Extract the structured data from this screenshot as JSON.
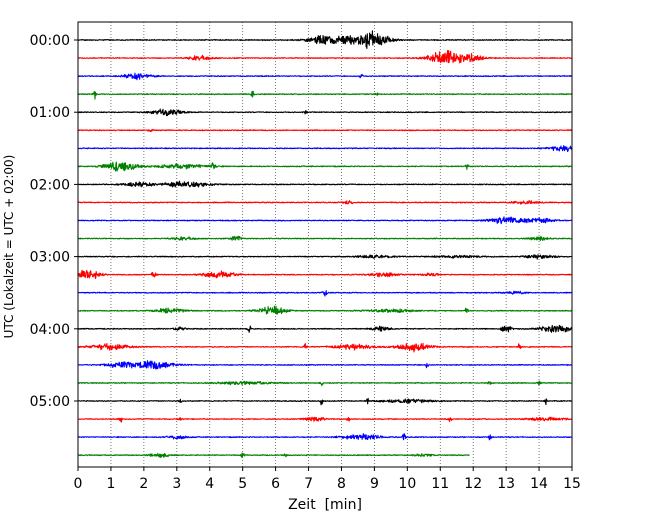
{
  "chart_data": {
    "type": "line",
    "title": "",
    "xlabel": "Zeit  [min]",
    "ylabel": "UTC (Lokalzeit = UTC + 02:00)",
    "xlim": [
      0,
      15
    ],
    "x_ticks": [
      "0",
      "1",
      "2",
      "3",
      "4",
      "5",
      "6",
      "7",
      "8",
      "9",
      "10",
      "11",
      "12",
      "13",
      "14",
      "15"
    ],
    "y_tick_labels": [
      "00:00",
      "01:00",
      "02:00",
      "03:00",
      "04:00",
      "05:00"
    ],
    "trace_interval_min": 15,
    "grid": "vertical dotted at each minute",
    "colors": [
      "#000000",
      "#ff0000",
      "#0000ff",
      "#008000"
    ],
    "traces": [
      {
        "start": "00:00",
        "color": "#000000",
        "bursts": [
          [
            7.5,
            0.35,
            0.55
          ],
          [
            9.0,
            0.3,
            0.8
          ],
          [
            8.5,
            0.5,
            0.5
          ]
        ]
      },
      {
        "start": "00:15",
        "color": "#ff0000",
        "bursts": [
          [
            3.7,
            0.25,
            0.3
          ],
          [
            11.2,
            0.4,
            0.8
          ],
          [
            11.9,
            0.3,
            0.4
          ]
        ]
      },
      {
        "start": "00:30",
        "color": "#0000ff",
        "bursts": [
          [
            1.8,
            0.3,
            0.35
          ],
          [
            8.6,
            0.03,
            0.45
          ]
        ]
      },
      {
        "start": "00:45",
        "color": "#008000",
        "bursts": [
          [
            0.5,
            0.03,
            0.7
          ],
          [
            5.3,
            0.03,
            0.5
          ],
          [
            9.1,
            0.05,
            0.2
          ]
        ]
      },
      {
        "start": "01:00",
        "color": "#000000",
        "bursts": [
          [
            2.7,
            0.3,
            0.45
          ],
          [
            6.9,
            0.03,
            0.3
          ]
        ]
      },
      {
        "start": "01:15",
        "color": "#ff0000",
        "bursts": [
          [
            2.2,
            0.05,
            0.2
          ]
        ]
      },
      {
        "start": "01:30",
        "color": "#0000ff",
        "bursts": [
          [
            14.8,
            0.3,
            0.4
          ]
        ]
      },
      {
        "start": "01:45",
        "color": "#008000",
        "bursts": [
          [
            1.3,
            0.35,
            0.65
          ],
          [
            3.2,
            0.5,
            0.3
          ],
          [
            4.1,
            0.05,
            0.4
          ],
          [
            11.8,
            0.03,
            0.4
          ]
        ]
      },
      {
        "start": "02:00",
        "color": "#000000",
        "bursts": [
          [
            1.8,
            0.3,
            0.3
          ],
          [
            3.3,
            0.45,
            0.4
          ]
        ]
      },
      {
        "start": "02:15",
        "color": "#ff0000",
        "bursts": [
          [
            8.2,
            0.1,
            0.3
          ],
          [
            13.6,
            0.3,
            0.2
          ]
        ]
      },
      {
        "start": "02:30",
        "color": "#0000ff",
        "bursts": [
          [
            13.0,
            0.35,
            0.45
          ],
          [
            14.0,
            0.3,
            0.3
          ]
        ]
      },
      {
        "start": "02:45",
        "color": "#008000",
        "bursts": [
          [
            3.2,
            0.25,
            0.2
          ],
          [
            4.8,
            0.1,
            0.45
          ],
          [
            14.0,
            0.2,
            0.25
          ]
        ]
      },
      {
        "start": "03:00",
        "color": "#000000",
        "bursts": [
          [
            9.0,
            0.4,
            0.2
          ],
          [
            14.0,
            0.3,
            0.25
          ],
          [
            11.5,
            0.5,
            0.15
          ]
        ]
      },
      {
        "start": "03:15",
        "color": "#ff0000",
        "bursts": [
          [
            0.3,
            0.25,
            0.6
          ],
          [
            2.3,
            0.05,
            0.4
          ],
          [
            4.3,
            0.35,
            0.4
          ],
          [
            9.3,
            0.3,
            0.25
          ],
          [
            10.7,
            0.2,
            0.2
          ]
        ]
      },
      {
        "start": "03:30",
        "color": "#0000ff",
        "bursts": [
          [
            7.5,
            0.05,
            0.4
          ],
          [
            13.3,
            0.2,
            0.2
          ]
        ]
      },
      {
        "start": "03:45",
        "color": "#008000",
        "bursts": [
          [
            2.8,
            0.3,
            0.3
          ],
          [
            5.9,
            0.3,
            0.55
          ],
          [
            11.8,
            0.03,
            0.5
          ],
          [
            9.5,
            0.5,
            0.2
          ]
        ]
      },
      {
        "start": "04:00",
        "color": "#000000",
        "bursts": [
          [
            5.2,
            0.03,
            0.6
          ],
          [
            13.0,
            0.1,
            0.5
          ],
          [
            14.5,
            0.3,
            0.6
          ],
          [
            9.2,
            0.2,
            0.3
          ],
          [
            3.1,
            0.1,
            0.3
          ]
        ]
      },
      {
        "start": "04:15",
        "color": "#ff0000",
        "bursts": [
          [
            1.0,
            0.4,
            0.4
          ],
          [
            6.9,
            0.03,
            0.6
          ],
          [
            10.2,
            0.35,
            0.55
          ],
          [
            8.3,
            0.4,
            0.35
          ],
          [
            13.4,
            0.03,
            0.4
          ]
        ]
      },
      {
        "start": "04:30",
        "color": "#0000ff",
        "bursts": [
          [
            1.3,
            0.3,
            0.4
          ],
          [
            2.3,
            0.4,
            0.55
          ],
          [
            10.6,
            0.03,
            0.4
          ]
        ]
      },
      {
        "start": "04:45",
        "color": "#008000",
        "bursts": [
          [
            7.4,
            0.03,
            0.35
          ],
          [
            12.5,
            0.03,
            0.4
          ],
          [
            14.0,
            0.03,
            0.35
          ],
          [
            5.0,
            0.6,
            0.2
          ]
        ]
      },
      {
        "start": "05:00",
        "color": "#000000",
        "bursts": [
          [
            3.1,
            0.03,
            0.4
          ],
          [
            7.4,
            0.03,
            0.55
          ],
          [
            8.8,
            0.03,
            0.55
          ],
          [
            14.2,
            0.03,
            0.4
          ],
          [
            10.0,
            0.5,
            0.25
          ]
        ]
      },
      {
        "start": "05:15",
        "color": "#ff0000",
        "bursts": [
          [
            1.3,
            0.03,
            0.45
          ],
          [
            3.1,
            0.03,
            0.4
          ],
          [
            8.2,
            0.03,
            0.45
          ],
          [
            11.3,
            0.03,
            0.4
          ],
          [
            7.2,
            0.2,
            0.25
          ],
          [
            14.2,
            0.4,
            0.2
          ]
        ]
      },
      {
        "start": "05:30",
        "color": "#0000ff",
        "bursts": [
          [
            9.9,
            0.03,
            0.65
          ],
          [
            12.5,
            0.03,
            0.5
          ],
          [
            8.6,
            0.4,
            0.35
          ],
          [
            3.0,
            0.2,
            0.25
          ]
        ]
      },
      {
        "start": "05:45",
        "color": "#008000",
        "end_min": 11.9,
        "bursts": [
          [
            5.0,
            0.03,
            0.4
          ],
          [
            2.5,
            0.2,
            0.3
          ],
          [
            6.3,
            0.03,
            0.3
          ],
          [
            10.5,
            0.2,
            0.2
          ]
        ]
      }
    ]
  }
}
